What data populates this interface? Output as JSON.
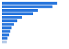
{
  "chart_data": {
    "type": "bar",
    "orientation": "horizontal",
    "categories": [
      null,
      null,
      null,
      null,
      null,
      null,
      null,
      null,
      null,
      null,
      null,
      null
    ],
    "values": [
      94,
      86,
      61,
      53,
      34,
      26,
      20,
      16,
      14,
      12,
      9,
      8
    ],
    "colors": [
      "#2876dd",
      "#2876dd",
      "#2876dd",
      "#2876dd",
      "#2876dd",
      "#2876dd",
      "#2876dd",
      "#2876dd",
      "#2876dd",
      "#2876dd",
      "#2876dd",
      "#b3c9e6"
    ],
    "xlim": [
      0,
      100
    ],
    "grid": false,
    "tick_labels": false
  }
}
